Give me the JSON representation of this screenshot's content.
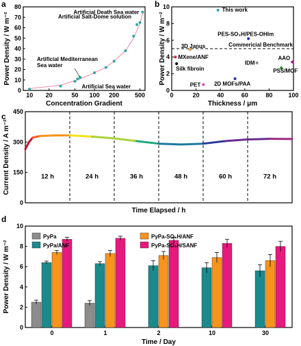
{
  "chart_data": [
    {
      "panel": "a",
      "type": "scatter",
      "xlabel": "Concentration Gradient",
      "ylabel": "Power Density / W m⁻²",
      "x_scale": "log",
      "xlim": [
        8,
        600
      ],
      "ylim": [
        0,
        80
      ],
      "xticks": [
        "10",
        "20",
        "50",
        "100",
        "200",
        "500"
      ],
      "yticks": [
        "0",
        "10",
        "20",
        "30",
        "40",
        "50",
        "60",
        "70",
        "80"
      ],
      "points": [
        {
          "x": 10,
          "y": 1.2
        },
        {
          "x": 30,
          "y": 4.2
        },
        {
          "x": 50,
          "y": 8.7
        },
        {
          "x": 55,
          "y": 11
        },
        {
          "x": 60,
          "y": 12.5
        },
        {
          "x": 100,
          "y": 17
        },
        {
          "x": 150,
          "y": 22
        },
        {
          "x": 200,
          "y": 28
        },
        {
          "x": 300,
          "y": 38
        },
        {
          "x": 400,
          "y": 52
        },
        {
          "x": 450,
          "y": 63
        },
        {
          "x": 500,
          "y": 65
        },
        {
          "x": 550,
          "y": 75
        }
      ],
      "fit": [
        [
          10,
          1.8
        ],
        [
          30,
          5
        ],
        [
          60,
          11
        ],
        [
          100,
          17
        ],
        [
          150,
          22
        ],
        [
          200,
          28
        ],
        [
          300,
          38
        ],
        [
          400,
          50
        ],
        [
          500,
          64
        ],
        [
          560,
          75
        ]
      ],
      "annotations": [
        {
          "text": "Artificial Death Sea water",
          "x": 550,
          "y": 75
        },
        {
          "text": "Artificial Salt-Dome solution",
          "x": 450,
          "y": 63
        },
        {
          "text": "Artificial Mediterranean Sea water",
          "x": 60,
          "y": 12.5
        },
        {
          "text": "Artificial Sea water",
          "x": 55,
          "y": 11
        }
      ],
      "marker_color": "#2aa7a1",
      "fit_color": "#f08aa8"
    },
    {
      "panel": "b",
      "type": "scatter",
      "xlabel": "Thickness / μm",
      "ylabel": "Power Density / W m⁻²",
      "xlim": [
        0,
        100
      ],
      "ylim": [
        0,
        10
      ],
      "xticks": [
        "0",
        "20",
        "40",
        "60",
        "80",
        "100"
      ],
      "yticks": [
        "0",
        "2",
        "4",
        "6",
        "8",
        "10"
      ],
      "benchmark": 5,
      "points": [
        {
          "label": "This work",
          "x": 38,
          "y": 9.6,
          "color": "#2aa7a1"
        },
        {
          "label": "PES-SO₃H/PES-OHIm",
          "x": 63,
          "y": 6.2,
          "color": "#1f2f9a"
        },
        {
          "label": "3D Janus",
          "x": 15,
          "y": 4.9,
          "color": "#e8932c"
        },
        {
          "label": "MXene/ANF",
          "x": 3,
          "y": 4.0,
          "color": "#d81b3f"
        },
        {
          "label": "Silk fibroin",
          "x": 4,
          "y": 3.2,
          "color": "#000000"
        },
        {
          "label": "IDM",
          "x": 70,
          "y": 3.3,
          "color": "#888888"
        },
        {
          "label": "AAO",
          "x": 99,
          "y": 3.4,
          "color": "#b01a8c"
        },
        {
          "label": "PSS/MOF",
          "x": 90,
          "y": 2.7,
          "color": "#2b8a2b"
        },
        {
          "label": "2D MOFs/PAA",
          "x": 52,
          "y": 1.4,
          "color": "#1f2f9a"
        },
        {
          "label": "PET",
          "x": 26,
          "y": 0.7,
          "color": "#e040c8"
        }
      ],
      "benchmark_label": "Commericial Benchmark",
      "benchmark_color": "#d81b3f"
    },
    {
      "panel": "c",
      "type": "line",
      "xlabel": "Time Elapsed / h",
      "ylabel": "Current Density / A m⁻²",
      "xlim": [
        0,
        72
      ],
      "ylim": [
        0,
        450
      ],
      "yticks": [
        "0",
        "150",
        "300",
        "450"
      ],
      "segments": [
        "12 h",
        "24 h",
        "36 h",
        "48 h",
        "60 h",
        "72 h"
      ],
      "values": [
        [
          0,
          265
        ],
        [
          1,
          300
        ],
        [
          2,
          322
        ],
        [
          4,
          330
        ],
        [
          8,
          333
        ],
        [
          12,
          333
        ],
        [
          18,
          327
        ],
        [
          24,
          318
        ],
        [
          30,
          305
        ],
        [
          36,
          292
        ],
        [
          42,
          288
        ],
        [
          48,
          292
        ],
        [
          54,
          305
        ],
        [
          60,
          313
        ],
        [
          66,
          316
        ],
        [
          72,
          315
        ]
      ]
    },
    {
      "panel": "d",
      "type": "bar",
      "xlabel": "Time / Day",
      "ylabel": "Power Density / W m⁻²",
      "ylim": [
        0,
        10
      ],
      "yticks": [
        "0",
        "2",
        "4",
        "6",
        "8",
        "10"
      ],
      "categories": [
        "0",
        "1",
        "2",
        "10",
        "30"
      ],
      "series": [
        {
          "name": "PyPa",
          "color": "#8c8c8c",
          "values": [
            2.5,
            2.4,
            null,
            null,
            null
          ],
          "errors": [
            0.2,
            0.25,
            0,
            0,
            0
          ]
        },
        {
          "name": "PyPa/ANF",
          "color": "#1b8a8c",
          "values": [
            6.4,
            6.3,
            6.1,
            5.9,
            5.6
          ],
          "errors": [
            0.15,
            0.2,
            0.5,
            0.5,
            0.6
          ]
        },
        {
          "name": "PyPa-SO₃H/ANF",
          "color": "#f7941d",
          "values": [
            7.4,
            7.3,
            7.1,
            6.9,
            6.6
          ],
          "errors": [
            0.2,
            0.3,
            0.4,
            0.5,
            0.6
          ]
        },
        {
          "name": "PyPa-SO₃H/SANF",
          "color": "#e8197d",
          "values": [
            8.7,
            8.8,
            8.6,
            8.3,
            8.0
          ],
          "errors": [
            0.2,
            0.2,
            0.3,
            0.4,
            0.5
          ]
        }
      ]
    }
  ]
}
